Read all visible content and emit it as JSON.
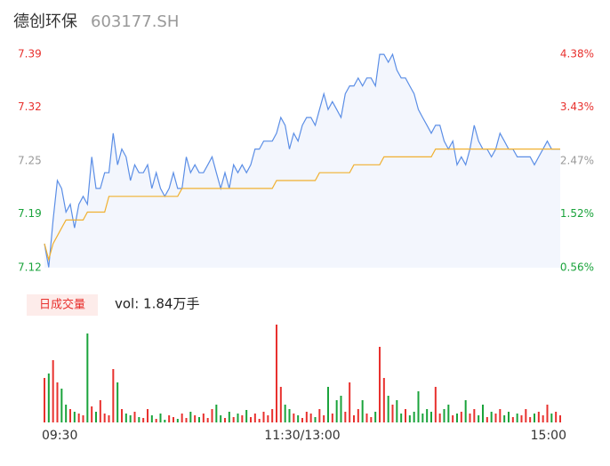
{
  "chart_data": {
    "type": "line",
    "title": "德创环保",
    "subtitle": "603177.SH",
    "x": [
      0,
      2,
      4,
      6,
      8,
      10,
      12,
      14,
      16,
      18,
      20,
      22,
      24,
      26,
      28,
      30,
      32,
      34,
      36,
      38,
      40,
      42,
      44,
      46,
      48,
      50,
      52,
      54,
      56,
      58,
      60,
      62,
      64,
      66,
      68,
      70,
      72,
      74,
      76,
      78,
      80,
      82,
      84,
      86,
      88,
      90,
      92,
      94,
      96,
      98,
      100,
      102,
      104,
      106,
      108,
      110,
      112,
      114,
      116,
      118,
      120,
      122,
      124,
      126,
      128,
      130,
      132,
      134,
      136,
      138,
      140,
      142,
      144,
      146,
      148,
      150,
      152,
      154,
      156,
      158,
      160,
      162,
      164,
      166,
      168,
      170,
      172,
      174,
      176,
      178,
      180,
      182,
      184,
      186,
      188,
      190,
      192,
      194,
      196,
      198,
      200,
      202,
      204,
      206,
      208,
      210,
      212,
      214,
      216,
      218,
      220,
      222,
      224,
      226,
      228,
      230,
      232,
      234,
      236,
      238,
      240
    ],
    "xlim": [
      0,
      240
    ],
    "xticks": [
      {
        "value": 0,
        "label": "09:30"
      },
      {
        "value": 120,
        "label": "11:30/13:00"
      },
      {
        "value": 240,
        "label": "15:00"
      }
    ],
    "ylim": [
      7.1196,
      7.3901
    ],
    "yticks": [
      {
        "value": 7.1196,
        "label": "7.12"
      },
      {
        "value": 7.1876,
        "label": "7.19"
      },
      {
        "value": 7.2549,
        "label": "7.25"
      },
      {
        "value": 7.3228,
        "label": "7.32"
      },
      {
        "value": 7.3901,
        "label": "7.39"
      }
    ],
    "y2lim": [
      0.56,
      4.38
    ],
    "y2ticks": [
      {
        "value": 0.56,
        "label": "0.56%"
      },
      {
        "value": 1.52,
        "label": "1.52%"
      },
      {
        "value": 2.47,
        "label": "2.47%"
      },
      {
        "value": 3.43,
        "label": "3.43%"
      },
      {
        "value": 4.38,
        "label": "4.38%"
      }
    ],
    "ytick_colors": [
      "#1aa33b",
      "#1aa33b",
      "#999999",
      "#e8312e",
      "#e8312e"
    ],
    "area_color": "#f3f6fd",
    "series": [
      {
        "color": "#5b8ee6",
        "values": [
          7.15,
          7.12,
          7.18,
          7.23,
          7.22,
          7.19,
          7.2,
          7.17,
          7.2,
          7.21,
          7.2,
          7.26,
          7.22,
          7.22,
          7.24,
          7.24,
          7.29,
          7.25,
          7.27,
          7.26,
          7.23,
          7.25,
          7.24,
          7.24,
          7.25,
          7.22,
          7.24,
          7.22,
          7.21,
          7.22,
          7.24,
          7.22,
          7.22,
          7.26,
          7.24,
          7.25,
          7.24,
          7.24,
          7.25,
          7.26,
          7.24,
          7.22,
          7.24,
          7.22,
          7.25,
          7.24,
          7.25,
          7.24,
          7.25,
          7.27,
          7.27,
          7.28,
          7.28,
          7.28,
          7.29,
          7.31,
          7.3,
          7.27,
          7.29,
          7.28,
          7.3,
          7.31,
          7.31,
          7.3,
          7.32,
          7.34,
          7.32,
          7.33,
          7.32,
          7.31,
          7.34,
          7.35,
          7.35,
          7.36,
          7.35,
          7.36,
          7.36,
          7.35,
          7.39,
          7.39,
          7.38,
          7.39,
          7.37,
          7.36,
          7.36,
          7.35,
          7.34,
          7.32,
          7.31,
          7.3,
          7.29,
          7.3,
          7.3,
          7.28,
          7.27,
          7.28,
          7.25,
          7.26,
          7.25,
          7.27,
          7.3,
          7.28,
          7.27,
          7.27,
          7.26,
          7.27,
          7.29,
          7.28,
          7.27,
          7.27,
          7.26,
          7.26,
          7.26,
          7.26,
          7.25,
          7.26,
          7.27,
          7.28,
          7.27,
          7.27,
          7.27
        ]
      },
      {
        "color": "#f0b030",
        "values": [
          7.15,
          7.13,
          7.15,
          7.16,
          7.17,
          7.18,
          7.18,
          7.18,
          7.18,
          7.18,
          7.19,
          7.19,
          7.19,
          7.19,
          7.19,
          7.21,
          7.21,
          7.21,
          7.21,
          7.21,
          7.21,
          7.21,
          7.21,
          7.21,
          7.21,
          7.21,
          7.21,
          7.21,
          7.21,
          7.21,
          7.21,
          7.21,
          7.22,
          7.22,
          7.22,
          7.22,
          7.22,
          7.22,
          7.22,
          7.22,
          7.22,
          7.22,
          7.22,
          7.22,
          7.22,
          7.22,
          7.22,
          7.22,
          7.22,
          7.22,
          7.22,
          7.22,
          7.22,
          7.22,
          7.23,
          7.23,
          7.23,
          7.23,
          7.23,
          7.23,
          7.23,
          7.23,
          7.23,
          7.23,
          7.24,
          7.24,
          7.24,
          7.24,
          7.24,
          7.24,
          7.24,
          7.24,
          7.25,
          7.25,
          7.25,
          7.25,
          7.25,
          7.25,
          7.25,
          7.26,
          7.26,
          7.26,
          7.26,
          7.26,
          7.26,
          7.26,
          7.26,
          7.26,
          7.26,
          7.26,
          7.26,
          7.27,
          7.27,
          7.27,
          7.27,
          7.27,
          7.27,
          7.27,
          7.27,
          7.27,
          7.27,
          7.27,
          7.27,
          7.27,
          7.27,
          7.27,
          7.27,
          7.27,
          7.27,
          7.27,
          7.27,
          7.27,
          7.27,
          7.27,
          7.27,
          7.27,
          7.27,
          7.27,
          7.27,
          7.27,
          7.27
        ]
      }
    ],
    "volume": {
      "label": "日成交量",
      "summary": "vol: 1.84万手",
      "up_color": "#e8312e",
      "down_color": "#1aa33b",
      "values": [
        50,
        55,
        70,
        45,
        38,
        20,
        15,
        12,
        10,
        8,
        100,
        18,
        12,
        25,
        10,
        8,
        60,
        45,
        15,
        10,
        8,
        12,
        6,
        5,
        15,
        8,
        4,
        10,
        3,
        8,
        6,
        4,
        10,
        5,
        12,
        8,
        6,
        10,
        5,
        15,
        20,
        8,
        5,
        12,
        6,
        10,
        8,
        14,
        6,
        10,
        4,
        12,
        8,
        15,
        110,
        40,
        20,
        15,
        10,
        8,
        5,
        12,
        10,
        6,
        15,
        8,
        40,
        10,
        25,
        30,
        12,
        45,
        8,
        15,
        25,
        10,
        6,
        12,
        85,
        50,
        30,
        20,
        25,
        10,
        15,
        8,
        12,
        35,
        10,
        15,
        12,
        40,
        10,
        15,
        20,
        8,
        10,
        12,
        25,
        10,
        15,
        8,
        20,
        6,
        12,
        10,
        15,
        8,
        12,
        6,
        10,
        8,
        15,
        6,
        10,
        12,
        8,
        20,
        10,
        12,
        8
      ]
    }
  }
}
